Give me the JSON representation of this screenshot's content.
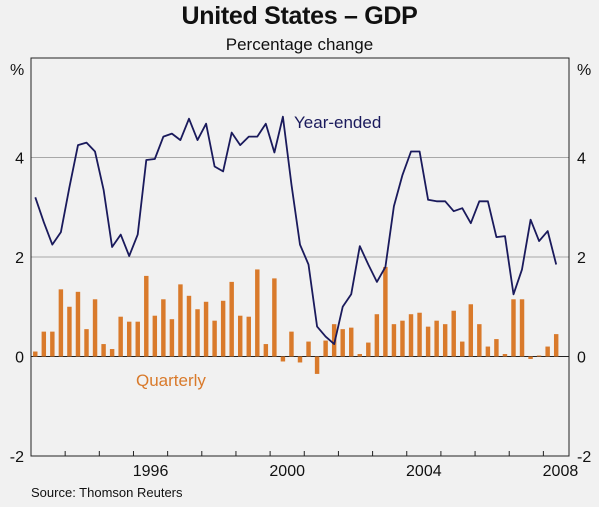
{
  "title": "United States – GDP",
  "subtitle": "Percentage change",
  "source": "Source: Thomson Reuters",
  "colors": {
    "line": "#1a1a5c",
    "bars": "#d97a2b",
    "grid": "#a8a8a8",
    "background": "#f1f1f1",
    "frame": "#222222"
  },
  "chart_data": {
    "type": "bar",
    "title": "United States – GDP",
    "subtitle": "Percentage change",
    "y_unit_left": "%",
    "y_unit_right": "%",
    "ylim": [
      -2,
      6
    ],
    "yticks": [
      -2,
      0,
      2,
      4
    ],
    "ytick_labels": [
      "-2",
      "0",
      "2",
      "4"
    ],
    "xlim": [
      1993,
      2008.75
    ],
    "xticks": [
      1996,
      2000,
      2004,
      2008
    ],
    "xtick_labels": [
      "1996",
      "2000",
      "2004",
      "2008"
    ],
    "grid": "horizontal",
    "series": [
      {
        "name": "Quarterly",
        "type": "bar",
        "color": "#d97a2b",
        "x": [
          1993.125,
          1993.375,
          1993.625,
          1993.875,
          1994.125,
          1994.375,
          1994.625,
          1994.875,
          1995.125,
          1995.375,
          1995.625,
          1995.875,
          1996.125,
          1996.375,
          1996.625,
          1996.875,
          1997.125,
          1997.375,
          1997.625,
          1997.875,
          1998.125,
          1998.375,
          1998.625,
          1998.875,
          1999.125,
          1999.375,
          1999.625,
          1999.875,
          2000.125,
          2000.375,
          2000.625,
          2000.875,
          2001.125,
          2001.375,
          2001.625,
          2001.875,
          2002.125,
          2002.375,
          2002.625,
          2002.875,
          2003.125,
          2003.375,
          2003.625,
          2003.875,
          2004.125,
          2004.375,
          2004.625,
          2004.875,
          2005.125,
          2005.375,
          2005.625,
          2005.875,
          2006.125,
          2006.375,
          2006.625,
          2006.875,
          2007.125,
          2007.375,
          2007.625,
          2007.875,
          2008.125,
          2008.375
        ],
        "values": [
          0.1,
          0.5,
          0.5,
          1.35,
          1.0,
          1.3,
          0.55,
          1.15,
          0.25,
          0.15,
          0.8,
          0.7,
          0.7,
          1.62,
          0.82,
          1.15,
          0.75,
          1.45,
          1.22,
          0.95,
          1.1,
          0.72,
          1.12,
          1.5,
          0.82,
          0.8,
          1.75,
          0.25,
          1.57,
          -0.1,
          0.5,
          -0.12,
          0.3,
          -0.35,
          0.32,
          0.65,
          0.55,
          0.58,
          0.05,
          0.28,
          0.85,
          1.8,
          0.65,
          0.72,
          0.85,
          0.88,
          0.6,
          0.72,
          0.65,
          0.92,
          0.3,
          1.05,
          0.65,
          0.2,
          0.35,
          0.05,
          1.15,
          1.15,
          -0.05,
          0.02,
          0.2,
          0.45
        ]
      },
      {
        "name": "Year-ended",
        "type": "line",
        "color": "#1a1a5c",
        "x": [
          1993.125,
          1993.375,
          1993.625,
          1993.875,
          1994.125,
          1994.375,
          1994.625,
          1994.875,
          1995.125,
          1995.375,
          1995.625,
          1995.875,
          1996.125,
          1996.375,
          1996.625,
          1996.875,
          1997.125,
          1997.375,
          1997.625,
          1997.875,
          1998.125,
          1998.375,
          1998.625,
          1998.875,
          1999.125,
          1999.375,
          1999.625,
          1999.875,
          2000.125,
          2000.375,
          2000.625,
          2000.875,
          2001.125,
          2001.375,
          2001.625,
          2001.875,
          2002.125,
          2002.375,
          2002.625,
          2002.875,
          2003.125,
          2003.375,
          2003.625,
          2003.875,
          2004.125,
          2004.375,
          2004.625,
          2004.875,
          2005.125,
          2005.375,
          2005.625,
          2005.875,
          2006.125,
          2006.375,
          2006.625,
          2006.875,
          2007.125,
          2007.375,
          2007.625,
          2007.875,
          2008.125,
          2008.375
        ],
        "values": [
          3.2,
          2.7,
          2.25,
          2.5,
          3.4,
          4.25,
          4.3,
          4.12,
          3.35,
          2.2,
          2.45,
          2.02,
          2.45,
          3.95,
          3.97,
          4.42,
          4.48,
          4.35,
          4.78,
          4.35,
          4.68,
          3.82,
          3.72,
          4.5,
          4.25,
          4.42,
          4.42,
          4.68,
          4.1,
          4.82,
          3.45,
          2.25,
          1.85,
          0.6,
          0.4,
          0.25,
          1.0,
          1.25,
          2.22,
          1.85,
          1.5,
          1.8,
          3.02,
          3.65,
          4.12,
          4.12,
          3.15,
          3.12,
          3.12,
          2.92,
          2.98,
          2.68,
          3.12,
          3.12,
          2.4,
          2.42,
          1.25,
          1.75,
          2.75,
          2.32,
          2.52,
          1.85
        ]
      }
    ],
    "annotations": [
      "Year-ended",
      "Quarterly"
    ]
  }
}
